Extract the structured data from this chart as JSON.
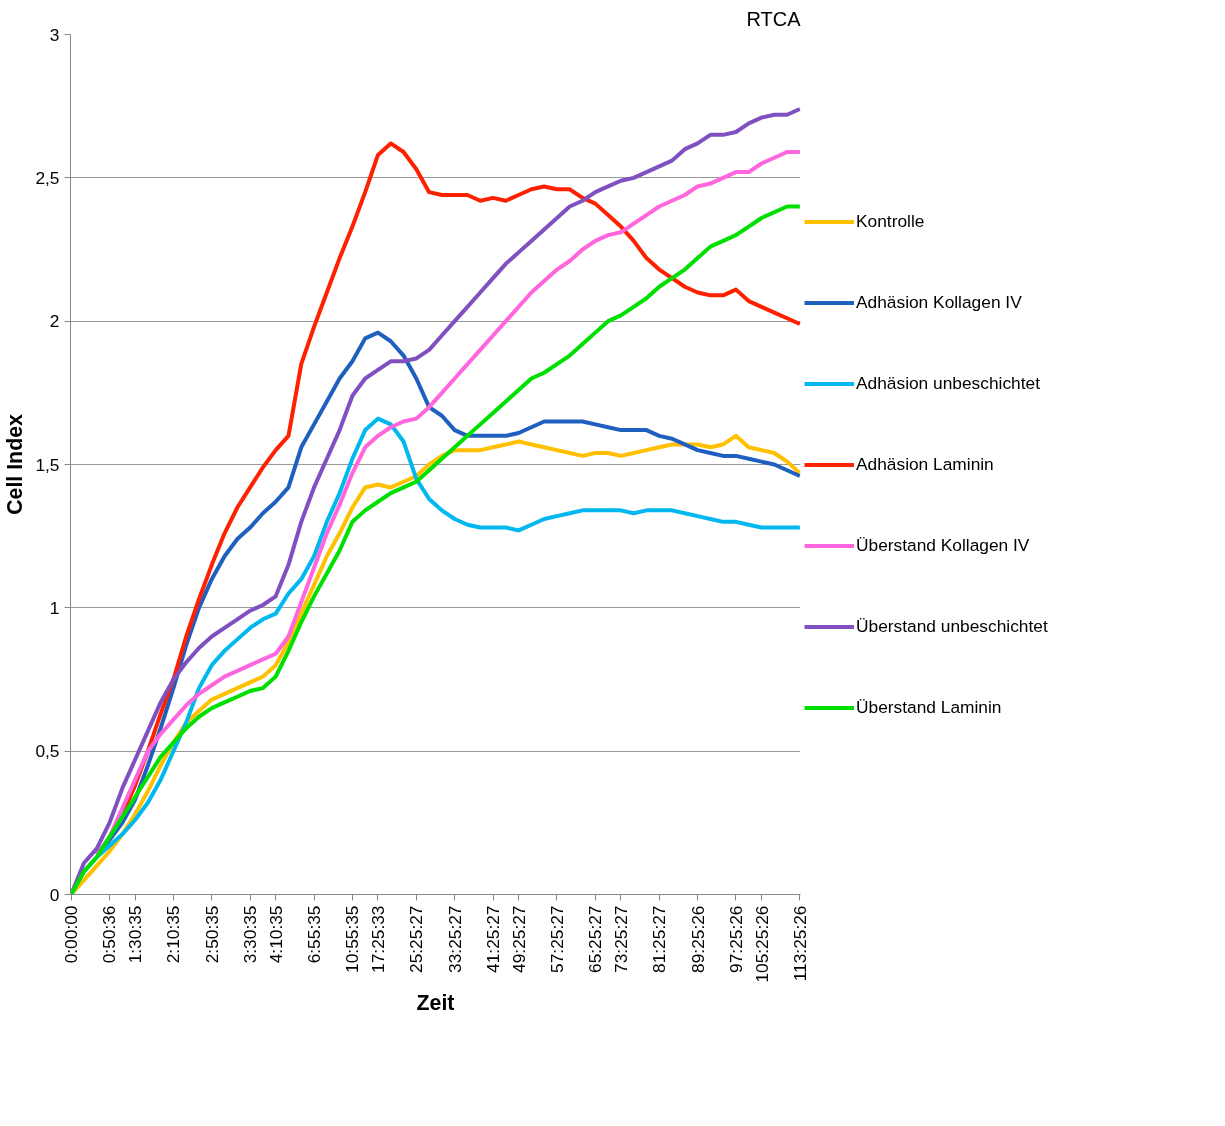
{
  "chart_data": {
    "type": "line",
    "title": "RTCA",
    "xlabel": "Zeit",
    "ylabel": "Cell Index",
    "categories": [
      "0:00:00",
      null,
      null,
      "0:50:36",
      null,
      "1:30:35",
      null,
      null,
      "2:10:35",
      null,
      null,
      "2:50:35",
      null,
      null,
      "3:30:35",
      null,
      "4:10:35",
      null,
      null,
      "6:55:35",
      null,
      null,
      "10:55:35",
      null,
      "17:25:33",
      null,
      null,
      "25:25:27",
      null,
      null,
      "33:25:27",
      null,
      null,
      "41:25:27",
      null,
      "49:25:27",
      null,
      null,
      "57:25:27",
      null,
      null,
      "65:25:27",
      null,
      "73:25:27",
      null,
      null,
      "81:25:27",
      null,
      null,
      "89:25:26",
      null,
      null,
      "97:25:26",
      null,
      "105:25:26",
      null,
      null,
      "113:25:26"
    ],
    "ylim": [
      0,
      3
    ],
    "yticks": [
      0,
      {
        "value": 0.5,
        "label": "0,5"
      },
      1,
      {
        "value": 1.5,
        "label": "1,5"
      },
      2,
      {
        "value": 2.5,
        "label": "2,5"
      },
      3
    ],
    "grid": "y",
    "legend": "right",
    "line_style": "solid",
    "marker": "none",
    "series": [
      {
        "name": "Kontrolle",
        "color": "#ffc000",
        "values": [
          0,
          0.05,
          0.1,
          0.15,
          0.21,
          0.28,
          0.36,
          0.45,
          0.53,
          0.6,
          0.64,
          0.68,
          0.7,
          0.72,
          0.74,
          0.76,
          0.8,
          0.88,
          0.98,
          1.08,
          1.18,
          1.26,
          1.35,
          1.42,
          1.43,
          1.42,
          1.44,
          1.46,
          1.5,
          1.53,
          1.55,
          1.55,
          1.55,
          1.56,
          1.57,
          1.58,
          1.57,
          1.56,
          1.55,
          1.54,
          1.53,
          1.54,
          1.54,
          1.53,
          1.54,
          1.55,
          1.56,
          1.57,
          1.57,
          1.57,
          1.56,
          1.57,
          1.6,
          1.56,
          1.55,
          1.54,
          1.51,
          1.47
        ]
      },
      {
        "name": "Adhäsion Kollagen IV",
        "color": "#1f5fbf",
        "values": [
          null,
          null,
          0.14,
          0.19,
          0.25,
          0.33,
          0.45,
          0.58,
          0.72,
          0.87,
          1.0,
          1.1,
          1.18,
          1.24,
          1.28,
          1.33,
          1.37,
          1.42,
          1.56,
          1.64,
          1.72,
          1.8,
          1.86,
          1.94,
          1.96,
          1.93,
          1.88,
          1.8,
          1.7,
          1.67,
          1.62,
          1.6,
          1.6,
          1.6,
          1.6,
          1.61,
          1.63,
          1.65,
          1.65,
          1.65,
          1.65,
          1.64,
          1.63,
          1.62,
          1.62,
          1.62,
          1.6,
          1.59,
          1.57,
          1.55,
          1.54,
          1.53,
          1.53,
          1.52,
          1.51,
          1.5,
          1.48,
          1.46
        ]
      },
      {
        "name": "Adhäsion unbeschichtet",
        "color": "#00b8f0",
        "values": [
          0,
          0.08,
          0.13,
          0.17,
          0.21,
          0.26,
          0.32,
          0.4,
          0.5,
          0.6,
          0.72,
          0.8,
          0.85,
          0.89,
          0.93,
          0.96,
          0.98,
          1.05,
          1.1,
          1.18,
          1.3,
          1.4,
          1.52,
          1.62,
          1.66,
          1.64,
          1.58,
          1.45,
          1.38,
          1.34,
          1.31,
          1.29,
          1.28,
          1.28,
          1.28,
          1.27,
          1.29,
          1.31,
          1.32,
          1.33,
          1.34,
          1.34,
          1.34,
          1.34,
          1.33,
          1.34,
          1.34,
          1.34,
          1.33,
          1.32,
          1.31,
          1.3,
          1.3,
          1.29,
          1.28,
          1.28,
          1.28,
          1.28
        ]
      },
      {
        "name": "Adhäsion Laminin",
        "color": "#ff2000",
        "values": [
          null,
          null,
          null,
          null,
          0.28,
          0.38,
          0.5,
          0.63,
          0.75,
          0.9,
          1.03,
          1.15,
          1.26,
          1.35,
          1.42,
          1.49,
          1.55,
          1.6,
          1.85,
          1.98,
          2.1,
          2.22,
          2.33,
          2.45,
          2.58,
          2.62,
          2.59,
          2.53,
          2.45,
          2.44,
          2.44,
          2.44,
          2.42,
          2.43,
          2.42,
          2.44,
          2.46,
          2.47,
          2.46,
          2.46,
          2.43,
          2.41,
          2.37,
          2.33,
          2.28,
          2.22,
          2.18,
          2.15,
          2.12,
          2.1,
          2.09,
          2.09,
          2.11,
          2.07,
          2.05,
          2.03,
          2.01,
          1.99
        ]
      },
      {
        "name": "Überstand Kollagen IV",
        "color": "#ff66dd",
        "values": [
          null,
          null,
          0.14,
          0.2,
          0.3,
          0.4,
          0.5,
          0.56,
          0.61,
          0.66,
          0.7,
          0.73,
          0.76,
          0.78,
          0.8,
          0.82,
          0.84,
          0.9,
          1.02,
          1.14,
          1.26,
          1.36,
          1.47,
          1.56,
          1.6,
          1.63,
          1.65,
          1.66,
          1.7,
          1.75,
          1.8,
          1.85,
          1.9,
          1.95,
          2.0,
          2.05,
          2.1,
          2.14,
          2.18,
          2.21,
          2.25,
          2.28,
          2.3,
          2.31,
          2.34,
          2.37,
          2.4,
          2.42,
          2.44,
          2.47,
          2.48,
          2.5,
          2.52,
          2.52,
          2.55,
          2.57,
          2.59,
          2.59
        ]
      },
      {
        "name": "Überstand unbeschichtet",
        "color": "#8050c0",
        "values": [
          0,
          0.11,
          0.16,
          0.25,
          0.37,
          0.47,
          0.57,
          0.67,
          0.75,
          0.81,
          0.86,
          0.9,
          0.93,
          0.96,
          0.99,
          1.01,
          1.04,
          1.15,
          1.3,
          1.42,
          1.52,
          1.62,
          1.74,
          1.8,
          1.83,
          1.86,
          1.86,
          1.87,
          1.9,
          1.95,
          2.0,
          2.05,
          2.1,
          2.15,
          2.2,
          2.24,
          2.28,
          2.32,
          2.36,
          2.4,
          2.42,
          2.45,
          2.47,
          2.49,
          2.5,
          2.52,
          2.54,
          2.56,
          2.6,
          2.62,
          2.65,
          2.65,
          2.66,
          2.69,
          2.71,
          2.72,
          2.72,
          2.74
        ]
      },
      {
        "name": "Überstand Laminin",
        "color": "#00e000",
        "values": [
          0,
          0.08,
          0.13,
          0.2,
          0.27,
          0.34,
          0.41,
          0.48,
          0.53,
          0.58,
          0.62,
          0.65,
          0.67,
          0.69,
          0.71,
          0.72,
          0.76,
          0.85,
          0.95,
          1.04,
          1.12,
          1.2,
          1.3,
          1.34,
          1.37,
          1.4,
          1.42,
          1.44,
          1.48,
          1.52,
          1.56,
          1.6,
          1.64,
          1.68,
          1.72,
          1.76,
          1.8,
          1.82,
          1.85,
          1.88,
          1.92,
          1.96,
          2.0,
          2.02,
          2.05,
          2.08,
          2.12,
          2.15,
          2.18,
          2.22,
          2.26,
          2.28,
          2.3,
          2.33,
          2.36,
          2.38,
          2.4,
          2.4
        ]
      }
    ]
  }
}
